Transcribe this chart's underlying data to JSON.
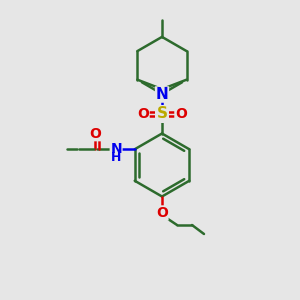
{
  "bg_color": "#e6e6e6",
  "bond_color": "#2d6b2d",
  "N_color": "#0000ee",
  "O_color": "#dd0000",
  "S_color": "#bbaa00",
  "bond_width": 1.8,
  "dbl_sep": 0.06,
  "figsize": [
    3.0,
    3.0
  ],
  "dpi": 100,
  "xlim": [
    0,
    10
  ],
  "ylim": [
    0,
    10
  ]
}
